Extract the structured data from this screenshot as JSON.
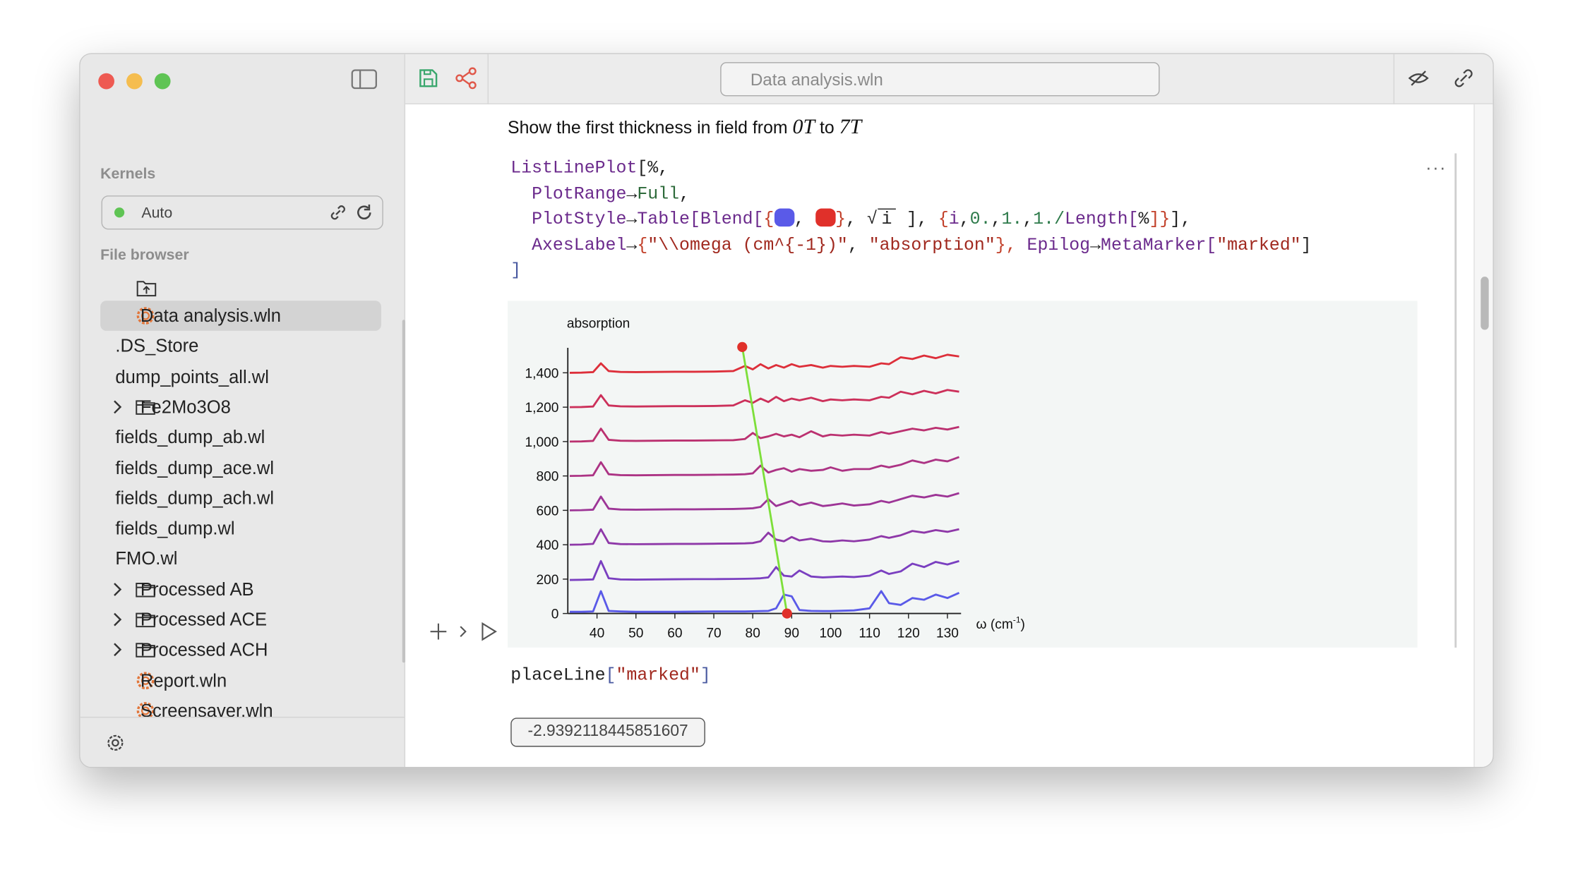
{
  "window": {
    "title": "Data analysis.wln"
  },
  "sidebar": {
    "kernels_heading": "Kernels",
    "kernel": "Auto",
    "file_browser_heading": "File browser",
    "files": [
      {
        "name": "Data analysis.wln",
        "kind": "notebook"
      },
      {
        "name": ".DS_Store",
        "kind": "file"
      },
      {
        "name": "dump_points_all.wl",
        "kind": "file"
      },
      {
        "name": "Fe2Mo3O8",
        "kind": "folder"
      },
      {
        "name": "fields_dump_ab.wl",
        "kind": "file"
      },
      {
        "name": "fields_dump_ace.wl",
        "kind": "file"
      },
      {
        "name": "fields_dump_ach.wl",
        "kind": "file"
      },
      {
        "name": "fields_dump.wl",
        "kind": "file"
      },
      {
        "name": "FMO.wl",
        "kind": "file"
      },
      {
        "name": "Processed AB",
        "kind": "folder"
      },
      {
        "name": "Processed ACE",
        "kind": "folder"
      },
      {
        "name": "Processed ACH",
        "kind": "folder"
      },
      {
        "name": "Report.wln",
        "kind": "notebook"
      },
      {
        "name": "Screensaver.wln",
        "kind": "notebook"
      }
    ]
  },
  "notebook": {
    "text_cell": [
      "Show the first thickness in field from",
      "0T",
      "to",
      "7T"
    ],
    "code": [
      [
        {
          "text": "ListLinePlot",
          "color": "#6b2a8c"
        },
        {
          "text": "[%,",
          "color": "#222222"
        }
      ],
      [
        {
          "text": "  PlotRange",
          "color": "#6b2a8c"
        },
        {
          "text": "→",
          "color": "#222222"
        },
        {
          "text": "Full",
          "color": "#2d6a3a"
        },
        {
          "text": ",",
          "color": "#222222"
        }
      ],
      [
        {
          "text": "  PlotStyle",
          "color": "#6b2a8c"
        },
        {
          "text": "→",
          "color": "#222222"
        },
        {
          "text": "Table[Blend[",
          "color": "#6b2a8c"
        },
        {
          "text": "{",
          "color": "#c2402a"
        },
        {
          "swatch": "#5a5ae8"
        },
        {
          "text": ", ",
          "color": "#222222"
        },
        {
          "swatch": "#e0302a"
        },
        {
          "text": "}",
          "color": "#c2402a"
        },
        {
          "text": ", ",
          "color": "#222222"
        },
        {
          "sqrt": "i"
        },
        {
          "text": " ], ",
          "color": "#222222"
        },
        {
          "text": "{",
          "color": "#c2402a"
        },
        {
          "text": "i",
          "color": "#6b2a8c"
        },
        {
          "text": ",",
          "color": "#222222"
        },
        {
          "text": "0.",
          "color": "#2d7a4a"
        },
        {
          "text": ",",
          "color": "#222222"
        },
        {
          "text": "1.",
          "color": "#2d7a4a"
        },
        {
          "text": ",",
          "color": "#222222"
        },
        {
          "text": "1./",
          "color": "#2d7a4a"
        },
        {
          "text": "Length[",
          "color": "#6b2a8c"
        },
        {
          "text": "%",
          "color": "#222222"
        },
        {
          "text": "]}",
          "color": "#c2402a"
        },
        {
          "text": "],",
          "color": "#222222"
        }
      ],
      [
        {
          "text": "  AxesLabel",
          "color": "#6b2a8c"
        },
        {
          "text": "→",
          "color": "#222222"
        },
        {
          "text": "{",
          "color": "#c2402a"
        },
        {
          "text": "\"\\\\omega (cm^{-1})\"",
          "color": "#a0281e"
        },
        {
          "text": ", ",
          "color": "#222222"
        },
        {
          "text": "\"absorption\"",
          "color": "#a0281e"
        },
        {
          "text": "}, ",
          "color": "#c2402a"
        },
        {
          "text": "Epilog",
          "color": "#6b2a8c"
        },
        {
          "text": "→",
          "color": "#222222"
        },
        {
          "text": "MetaMarker[",
          "color": "#6b2a8c"
        },
        {
          "text": "\"marked\"",
          "color": "#a0281e"
        },
        {
          "text": "]",
          "color": "#222222"
        }
      ],
      [
        {
          "text": "]",
          "color": "#4a5aa0"
        }
      ]
    ],
    "code2": [
      {
        "text": "placeLine",
        "color": "#222222"
      },
      {
        "text": "[",
        "color": "#4a5aa0"
      },
      {
        "text": "\"marked\"",
        "color": "#a0281e"
      },
      {
        "text": "]",
        "color": "#4a5aa0"
      }
    ],
    "output": "-2.9392118445851607"
  },
  "chart_data": {
    "type": "line",
    "y_label": "absorption",
    "x_label": [
      "ω (cm",
      "-1",
      ")"
    ],
    "xlim": [
      32.5,
      133.5
    ],
    "ylim": [
      0,
      1545
    ],
    "xticks": [
      40,
      50,
      60,
      70,
      80,
      90,
      100,
      110,
      120,
      130
    ],
    "yticks": [
      0,
      200,
      400,
      600,
      800,
      {
        "value": 1000,
        "label": "1,000"
      },
      {
        "value": 1200,
        "label": "1,200"
      },
      {
        "value": 1400,
        "label": "1,400"
      }
    ],
    "x": [
      33,
      36,
      39,
      41,
      43,
      46,
      50,
      55,
      60,
      65,
      70,
      75,
      78,
      80,
      82,
      84,
      86,
      88,
      90,
      92,
      95,
      98,
      100,
      103,
      106,
      110,
      113,
      115,
      118,
      121,
      124,
      127,
      130,
      133
    ],
    "series": [
      {
        "color": "#5a5ae8",
        "values": [
          10,
          10,
          12,
          130,
          15,
          12,
          10,
          10,
          10,
          11,
          12,
          12,
          12,
          13,
          14,
          15,
          30,
          110,
          100,
          20,
          15,
          14,
          14,
          16,
          18,
          30,
          130,
          60,
          50,
          90,
          80,
          110,
          90,
          120
        ]
      },
      {
        "color": "#7a3fc0",
        "values": [
          195,
          196,
          198,
          305,
          205,
          198,
          197,
          198,
          199,
          200,
          200,
          201,
          202,
          203,
          205,
          210,
          270,
          220,
          215,
          250,
          215,
          210,
          212,
          215,
          212,
          220,
          250,
          230,
          245,
          290,
          270,
          300,
          285,
          305
        ]
      },
      {
        "color": "#8e38a8",
        "values": [
          400,
          401,
          405,
          490,
          410,
          404,
          403,
          404,
          405,
          405,
          406,
          407,
          408,
          410,
          420,
          470,
          430,
          420,
          445,
          425,
          435,
          420,
          418,
          425,
          420,
          430,
          450,
          440,
          455,
          480,
          470,
          485,
          475,
          490
        ]
      },
      {
        "color": "#9d3596",
        "values": [
          600,
          601,
          604,
          680,
          610,
          605,
          604,
          605,
          606,
          606,
          607,
          608,
          610,
          612,
          620,
          665,
          625,
          640,
          655,
          630,
          645,
          625,
          630,
          640,
          628,
          635,
          655,
          645,
          665,
          685,
          675,
          690,
          680,
          700
        ]
      },
      {
        "color": "#ac3384",
        "values": [
          800,
          801,
          804,
          880,
          810,
          805,
          804,
          805,
          806,
          806,
          807,
          808,
          810,
          815,
          860,
          820,
          835,
          845,
          825,
          840,
          830,
          835,
          850,
          830,
          840,
          840,
          860,
          850,
          865,
          890,
          875,
          895,
          885,
          910
        ]
      },
      {
        "color": "#bb3170",
        "values": [
          1000,
          1001,
          1004,
          1075,
          1010,
          1005,
          1004,
          1005,
          1006,
          1006,
          1007,
          1008,
          1015,
          1050,
          1020,
          1030,
          1045,
          1030,
          1040,
          1025,
          1060,
          1030,
          1040,
          1035,
          1040,
          1035,
          1055,
          1045,
          1060,
          1075,
          1065,
          1080,
          1070,
          1085
        ]
      },
      {
        "color": "#cc305a",
        "values": [
          1200,
          1201,
          1204,
          1270,
          1210,
          1205,
          1204,
          1205,
          1206,
          1206,
          1207,
          1210,
          1240,
          1225,
          1250,
          1230,
          1260,
          1235,
          1250,
          1240,
          1255,
          1235,
          1245,
          1240,
          1245,
          1240,
          1260,
          1255,
          1290,
          1275,
          1295,
          1280,
          1300,
          1290
        ]
      },
      {
        "color": "#dd2f3a",
        "values": [
          1400,
          1401,
          1404,
          1455,
          1410,
          1405,
          1404,
          1405,
          1406,
          1406,
          1407,
          1410,
          1440,
          1420,
          1450,
          1425,
          1445,
          1430,
          1450,
          1435,
          1445,
          1430,
          1440,
          1435,
          1440,
          1435,
          1455,
          1450,
          1490,
          1480,
          1500,
          1485,
          1505,
          1495
        ]
      }
    ],
    "marker": {
      "x": [
        77.3,
        88.8
      ],
      "y": [
        1550,
        0
      ],
      "color": "#7ddf3a",
      "point_color": "#e0302a"
    }
  }
}
